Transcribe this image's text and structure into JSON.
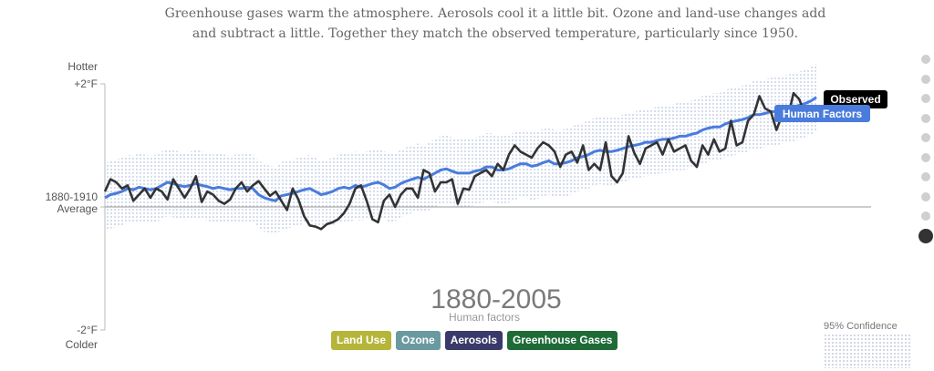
{
  "intro_text": "Greenhouse gases warm the atmosphere. Aerosols cool it a little bit. Ozone and land-use changes add and subtract a little. Together they match the observed temperature, particularly since 1950.",
  "period_title": "1880-2005",
  "period_subtitle": "Human factors",
  "confidence_label": "95% Confidence",
  "buttons": [
    {
      "label": "Land Use",
      "color": "#b5b53a"
    },
    {
      "label": "Ozone",
      "color": "#6a9aa0"
    },
    {
      "label": "Aerosols",
      "color": "#3a3a6a"
    },
    {
      "label": "Greenhouse Gases",
      "color": "#1f6b38"
    }
  ],
  "step_count": 10,
  "active_step": 9,
  "chart_data": {
    "type": "line",
    "x_range": [
      1880,
      2005
    ],
    "ylim": [
      -2,
      2
    ],
    "y_ticks": [
      {
        "value": 2,
        "label": "+2°F",
        "caption": "Hotter"
      },
      {
        "value": 0,
        "label": "1880-1910",
        "caption": "Average"
      },
      {
        "value": -2,
        "label": "-2°F",
        "caption": "Colder"
      }
    ],
    "band_halfwidth": 0.55,
    "series": [
      {
        "name": "Observed",
        "color": "#333333",
        "label_bg": "#000000",
        "values": [
          0.25,
          0.45,
          0.4,
          0.3,
          0.35,
          0.1,
          0.2,
          0.3,
          0.15,
          0.3,
          0.25,
          0.12,
          0.45,
          0.3,
          0.15,
          0.3,
          0.5,
          0.08,
          0.25,
          0.2,
          0.1,
          0.05,
          0.12,
          0.3,
          0.4,
          0.25,
          0.35,
          0.42,
          0.3,
          0.18,
          0.25,
          0.1,
          -0.05,
          0.3,
          0.12,
          -0.15,
          -0.3,
          -0.32,
          -0.36,
          -0.28,
          -0.25,
          -0.2,
          -0.1,
          0.05,
          0.3,
          0.35,
          0.1,
          -0.2,
          -0.25,
          0.1,
          0.2,
          0.0,
          0.2,
          0.3,
          0.3,
          0.15,
          0.6,
          0.55,
          0.25,
          0.4,
          0.4,
          0.45,
          0.05,
          0.3,
          0.28,
          0.5,
          0.55,
          0.6,
          0.5,
          0.7,
          0.6,
          0.85,
          1.0,
          0.9,
          0.85,
          0.8,
          0.95,
          1.05,
          1.0,
          0.9,
          0.65,
          0.85,
          0.9,
          0.72,
          1.0,
          0.6,
          0.7,
          0.6,
          1.05,
          0.5,
          0.4,
          0.55,
          1.15,
          0.88,
          0.7,
          0.95,
          1.0,
          1.05,
          0.85,
          1.1,
          0.9,
          0.95,
          1.0,
          0.75,
          0.65,
          1.0,
          0.85,
          1.1,
          0.9,
          0.95,
          1.4,
          1.0,
          1.05,
          1.4,
          1.5,
          1.8,
          1.6,
          1.55,
          1.25,
          1.5,
          1.45,
          1.85,
          1.75,
          1.5,
          1.55,
          1.65
        ]
      },
      {
        "name": "Human Factors",
        "color": "#4a7cdc",
        "label_bg": "#4a7cdc",
        "values": [
          0.15,
          0.2,
          0.22,
          0.25,
          0.3,
          0.28,
          0.32,
          0.3,
          0.28,
          0.3,
          0.35,
          0.4,
          0.38,
          0.35,
          0.33,
          0.35,
          0.38,
          0.35,
          0.33,
          0.3,
          0.32,
          0.3,
          0.28,
          0.3,
          0.3,
          0.32,
          0.3,
          0.2,
          0.15,
          0.12,
          0.1,
          0.18,
          0.2,
          0.22,
          0.25,
          0.28,
          0.3,
          0.25,
          0.2,
          0.22,
          0.25,
          0.3,
          0.32,
          0.3,
          0.35,
          0.32,
          0.35,
          0.38,
          0.4,
          0.36,
          0.3,
          0.32,
          0.38,
          0.42,
          0.45,
          0.48,
          0.45,
          0.5,
          0.55,
          0.6,
          0.62,
          0.58,
          0.55,
          0.55,
          0.55,
          0.58,
          0.6,
          0.65,
          0.65,
          0.6,
          0.6,
          0.62,
          0.66,
          0.7,
          0.7,
          0.66,
          0.68,
          0.72,
          0.75,
          0.7,
          0.7,
          0.72,
          0.75,
          0.8,
          0.82,
          0.85,
          0.9,
          0.92,
          0.9,
          0.9,
          0.92,
          0.95,
          0.98,
          1.0,
          1.02,
          1.05,
          1.05,
          1.08,
          1.1,
          1.1,
          1.12,
          1.15,
          1.15,
          1.18,
          1.2,
          1.25,
          1.28,
          1.3,
          1.3,
          1.35,
          1.38,
          1.4,
          1.42,
          1.45,
          1.5,
          1.5,
          1.52,
          1.55,
          1.55,
          1.58,
          1.6,
          1.62,
          1.65,
          1.68,
          1.72,
          1.78
        ]
      }
    ]
  }
}
